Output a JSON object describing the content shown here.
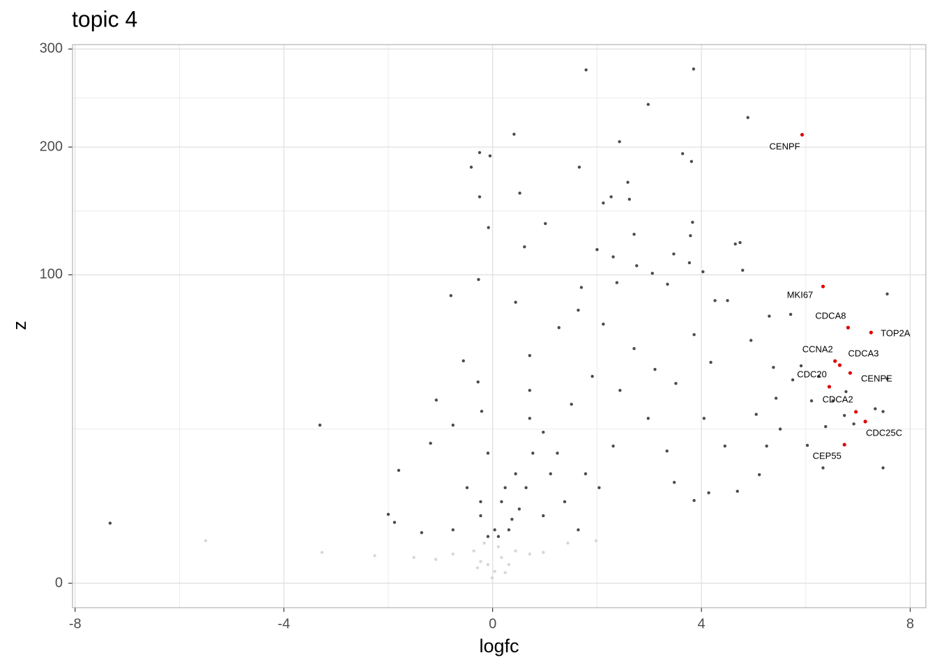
{
  "chart_data": {
    "type": "scatter",
    "title": "topic 4",
    "x_label": "logfc",
    "y_label": "z",
    "xlim": [
      -8.05,
      8.3
    ],
    "ylim": [
      0,
      305
    ],
    "y_scale": "sqrt",
    "grid": true,
    "xticks": [
      -8,
      -4,
      0,
      4,
      8
    ],
    "yticks": [
      0,
      100,
      200,
      300
    ],
    "series": [
      {
        "color": "#d3d3d3",
        "x": [
          -5.5,
          -3.27,
          -2.26,
          -1.51,
          -1.09,
          -0.76,
          -0.36,
          -0.09,
          -0.01,
          0.04,
          -0.23,
          0.17,
          0.44,
          0.71,
          0.97,
          1.44,
          1.98,
          0.11,
          -0.16,
          0.31,
          -0.29,
          0.24
        ],
        "values": [
          1.9,
          1.0,
          0.8,
          0.7,
          0.6,
          0.9,
          1.1,
          0.37,
          0.03,
          0.15,
          0.5,
          0.7,
          1.1,
          0.9,
          1.0,
          1.7,
          1.9,
          1.4,
          1.7,
          0.37,
          0.25,
          0.12
        ]
      },
      {
        "color": "#000000",
        "x": [
          1.79,
          3.85,
          2.98,
          4.89,
          0.41,
          2.43,
          -0.25,
          3.64,
          -0.05,
          3.81,
          -0.41,
          1.66,
          2.59,
          0.52,
          2.27,
          2.12,
          2.62,
          -0.25,
          1.01,
          -0.08,
          3.83,
          2.71,
          3.79,
          4.74,
          4.65,
          0.61,
          2.0,
          3.47,
          2.31,
          3.77,
          2.76,
          4.79,
          4.03,
          3.06,
          -0.27,
          7.56,
          -0.8,
          1.7,
          3.35,
          2.38,
          4.5,
          4.26,
          5.71,
          5.3,
          0.44,
          3.86,
          4.95,
          -0.56,
          5.38,
          5.43,
          5.05,
          5.51,
          6.03,
          6.33,
          7.48,
          7.33,
          7.48,
          7.56,
          5.11,
          5.25,
          4.69,
          4.14,
          3.86,
          3.48,
          3.34,
          -3.31,
          -7.33,
          -1.08,
          -1.8,
          -2.0,
          -1.88,
          -1.36,
          -1.19,
          -0.76,
          -0.28,
          -0.21,
          0.71,
          1.27,
          1.64,
          2.12,
          2.71,
          3.11,
          3.51,
          4.18,
          4.05,
          4.45,
          2.98,
          2.31,
          2.04,
          1.64,
          0.97,
          1.24,
          0.71,
          0.44,
          0.17,
          0.31,
          -0.23,
          -0.49,
          -0.76,
          -0.09,
          0.97,
          1.51,
          1.91,
          2.44,
          0.71,
          5.91,
          6.25,
          6.52,
          6.77,
          6.92,
          6.38,
          6.74,
          6.11,
          5.75,
          0.04,
          0.11,
          0.24,
          0.51,
          -0.09,
          -0.23,
          0.37,
          0.64,
          0.77,
          1.11,
          1.38,
          1.78
        ],
        "values": [
          277,
          278,
          241,
          228,
          212,
          205,
          195,
          194,
          192,
          187,
          182,
          182,
          169,
          160,
          157,
          152,
          155,
          157,
          136,
          133,
          137,
          128,
          127,
          122,
          121,
          119,
          117,
          114,
          112,
          108,
          106,
          103,
          102,
          101,
          97,
          88,
          87,
          92,
          94,
          95,
          84,
          84,
          76,
          75,
          83,
          65,
          62,
          52,
          49,
          36,
          30,
          25,
          20,
          14,
          14,
          32,
          31,
          44,
          12.4,
          19.8,
          8.9,
          8.6,
          7.2,
          10.7,
          18.4,
          26.3,
          3.8,
          35.3,
          13.4,
          5.0,
          3.9,
          2.7,
          20.6,
          26.3,
          42.6,
          31.1,
          54.5,
          68.7,
          78.4,
          70.6,
          57.9,
          48.1,
          42.0,
          51.3,
          28.6,
          19.8,
          28.6,
          19.8,
          9.6,
          3.0,
          4.8,
          17.8,
          28.6,
          12.6,
          7.0,
          3.0,
          4.8,
          9.6,
          3.0,
          17.8,
          24.0,
          33.7,
          45.0,
          39.1,
          39.1,
          49.7,
          45.0,
          35.0,
          38.6,
          26.7,
          25.8,
          29.6,
          35.0,
          43.5,
          3.0,
          2.3,
          9.6,
          5.8,
          2.3,
          7.0,
          4.3,
          9.6,
          17.8,
          12.6,
          7.0,
          12.6
        ]
      },
      {
        "color": "#e00000",
        "x": [
          5.93,
          6.33,
          6.81,
          7.25,
          6.56,
          6.65,
          6.85,
          6.45,
          6.96,
          7.14,
          6.74
        ],
        "values": [
          211.5,
          92.6,
          68.7,
          66.1,
          51.9,
          50.0,
          46.5,
          40.6,
          30.9,
          27.5,
          20.2
        ],
        "labels": [
          "CENPF",
          "MKI67",
          "CDCA8",
          "TOP2A",
          "CCNA2",
          "CDCA3",
          "CENPE",
          "CDC20",
          "CDCA2",
          "CDC25C",
          "CEP55"
        ]
      }
    ]
  }
}
